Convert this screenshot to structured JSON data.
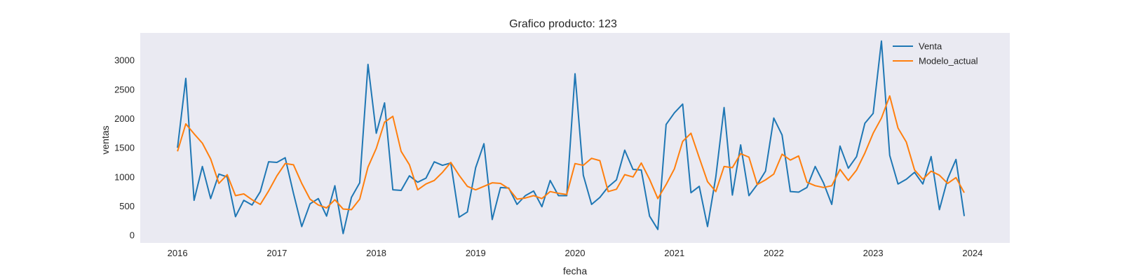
{
  "chart_data": {
    "type": "line",
    "title": "Grafico producto: 123",
    "xlabel": "fecha",
    "ylabel": "ventas",
    "xlim": [
      2015.625,
      2024.375
    ],
    "ylim": [
      -130,
      3470
    ],
    "grid": false,
    "background": "#eaeaf2",
    "legend_position": "top-right",
    "x_ticks": [
      2016,
      2017,
      2018,
      2019,
      2020,
      2021,
      2022,
      2023,
      2024
    ],
    "y_ticks": [
      0,
      500,
      1000,
      1500,
      2000,
      2500,
      3000
    ],
    "x_start": 2016,
    "x_step": 0.08333333,
    "series": [
      {
        "name": "Venta",
        "color": "#1f77b4",
        "values": [
          1500,
          2690,
          600,
          1180,
          630,
          1050,
          1000,
          320,
          600,
          520,
          750,
          1260,
          1250,
          1330,
          720,
          150,
          540,
          630,
          330,
          850,
          30,
          650,
          900,
          2930,
          1750,
          2270,
          780,
          770,
          1020,
          910,
          980,
          1260,
          1200,
          1240,
          310,
          400,
          1160,
          1570,
          270,
          820,
          810,
          530,
          680,
          760,
          490,
          940,
          680,
          680,
          2770,
          1030,
          530,
          650,
          830,
          950,
          1460,
          1130,
          1120,
          330,
          100,
          1900,
          2100,
          2250,
          730,
          840,
          150,
          1000,
          2190,
          690,
          1550,
          680,
          870,
          1100,
          2010,
          1720,
          750,
          740,
          820,
          1180,
          900,
          530,
          1530,
          1150,
          1350,
          1920,
          2090,
          3330,
          1370,
          880,
          960,
          1080,
          880,
          1350,
          440,
          970,
          1300,
          330
        ]
      },
      {
        "name": "Modelo_actual",
        "color": "#ff7f0e",
        "values": [
          1440,
          1910,
          1740,
          1580,
          1310,
          890,
          1040,
          680,
          710,
          610,
          530,
          760,
          1020,
          1230,
          1210,
          890,
          620,
          520,
          470,
          610,
          450,
          440,
          620,
          1170,
          1490,
          1940,
          2040,
          1440,
          1210,
          780,
          880,
          940,
          1080,
          1250,
          1030,
          840,
          780,
          840,
          900,
          890,
          800,
          620,
          640,
          680,
          630,
          750,
          720,
          700,
          1230,
          1200,
          1320,
          1280,
          750,
          790,
          1040,
          1000,
          1240,
          960,
          630,
          870,
          1140,
          1610,
          1750,
          1330,
          920,
          750,
          1180,
          1160,
          1400,
          1340,
          870,
          950,
          1050,
          1390,
          1290,
          1360,
          910,
          850,
          820,
          850,
          1130,
          940,
          1120,
          1410,
          1750,
          2010,
          2390,
          1840,
          1600,
          1120,
          960,
          1100,
          1030,
          890,
          990,
          730
        ]
      }
    ]
  }
}
